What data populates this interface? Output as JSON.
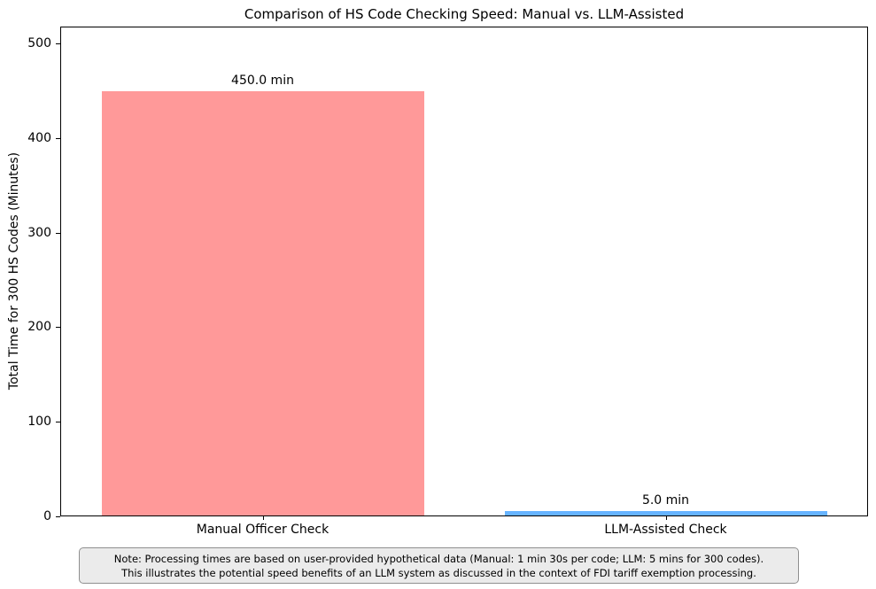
{
  "chart_data": {
    "type": "bar",
    "title": "Comparison of HS Code Checking Speed: Manual vs. LLM-Assisted",
    "xlabel": "",
    "ylabel": "Total Time for 300 HS Codes (Minutes)",
    "categories": [
      "Manual Officer Check",
      "LLM-Assisted Check"
    ],
    "values": [
      450.0,
      5.0
    ],
    "bar_labels": [
      "450.0 min",
      "5.0 min"
    ],
    "bar_colors": [
      "#ff9999",
      "#66b3ff"
    ],
    "yticks": [
      0,
      100,
      200,
      300,
      400,
      500
    ],
    "ylim": [
      0,
      518
    ],
    "bar_width_fraction": 0.8,
    "grid": false,
    "legend": "none"
  },
  "note": {
    "line1": "Note: Processing times are based on user-provided hypothetical data (Manual: 1 min 30s per code; LLM: 5 mins for 300 codes).",
    "line2": "This illustrates the potential speed benefits of an LLM system as discussed in the context of FDI tariff exemption processing."
  },
  "colors": {
    "background": "#ffffff",
    "axis": "#000000",
    "manual_bar": "#ff9999",
    "llm_bar": "#66b3ff",
    "note_background": "#ebebeb",
    "note_border": "#8f8f8f"
  }
}
